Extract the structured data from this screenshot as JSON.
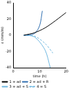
{
  "chart_data": {
    "type": "line",
    "x_label": "time (h)",
    "y_label": "ε (mm/m)",
    "xlim": [
      0,
      20
    ],
    "xticks": [
      0,
      10,
      20
    ],
    "ylim": [
      -40,
      40
    ],
    "yticks": [
      -40,
      -20,
      0,
      20,
      40
    ],
    "grid": false,
    "legend": "bottom",
    "series": [
      {
        "name": "1 = ad",
        "color": "#000000",
        "line_style": "solid",
        "marker": "none",
        "x": [
          4,
          8,
          12,
          16,
          20
        ],
        "values": [
          0,
          3,
          9,
          18,
          28
        ]
      },
      {
        "name": "2 = ad + R",
        "color": "#2f6fb0",
        "line_style": "solid",
        "marker": "none",
        "x": [
          4,
          8,
          10,
          11
        ],
        "values": [
          0,
          2,
          12,
          30
        ]
      },
      {
        "name": "3 = ad + S",
        "color": "#6fb7e0",
        "line_style": "solid",
        "marker": "none",
        "x": [
          4,
          8,
          12,
          14
        ],
        "values": [
          0,
          -2,
          -18,
          -40
        ]
      },
      {
        "name": "4 = S",
        "color": "#6fb7e0",
        "line_style": "dashed",
        "marker": "none",
        "x": [
          4,
          8,
          12,
          15
        ],
        "values": [
          0,
          -1,
          -10,
          -22
        ]
      }
    ]
  }
}
